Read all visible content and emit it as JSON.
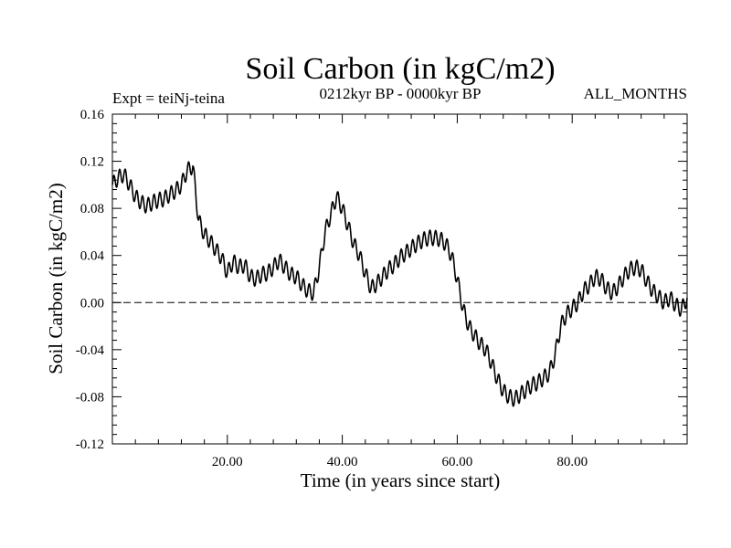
{
  "chart_data": {
    "type": "line",
    "title": "Soil Carbon (in kgC/m2)",
    "subtitle_left": "Expt = teiNj-teina",
    "subtitle_center": "0212kyr BP - 0000kyr BP",
    "subtitle_right": "ALL_MONTHS",
    "xlabel": "Time (in years since start)",
    "ylabel": "Soil Carbon (in kgC/m2)",
    "xlim": [
      0,
      100
    ],
    "ylim": [
      -0.12,
      0.16
    ],
    "xticks": [
      20,
      40,
      60,
      80
    ],
    "xtick_labels": [
      "20.00",
      "40.00",
      "60.00",
      "80.00"
    ],
    "yticks": [
      -0.12,
      -0.08,
      -0.04,
      0.0,
      0.04,
      0.08,
      0.12,
      0.16
    ],
    "ytick_labels": [
      "-0.12",
      "-0.08",
      "-0.04",
      "0.00",
      "0.04",
      "0.08",
      "0.12",
      "0.16"
    ],
    "reference_line": {
      "y": 0.0,
      "style": "dashed"
    },
    "seasonal_cycle": {
      "amplitude": 0.0065,
      "period_years": 1
    },
    "series": [
      {
        "name": "Soil Carbon",
        "x": [
          0,
          1,
          2,
          3,
          4,
          5,
          6,
          7,
          8,
          9,
          10,
          11,
          12,
          13,
          14,
          15,
          16,
          17,
          18,
          19,
          20,
          21,
          22,
          23,
          24,
          25,
          26,
          27,
          28,
          29,
          30,
          31,
          32,
          33,
          34,
          35,
          36,
          37,
          38,
          39,
          40,
          41,
          42,
          43,
          44,
          45,
          46,
          47,
          48,
          49,
          50,
          51,
          52,
          53,
          54,
          55,
          56,
          57,
          58,
          59,
          60,
          61,
          62,
          63,
          64,
          65,
          66,
          67,
          68,
          69,
          70,
          71,
          72,
          73,
          74,
          75,
          76,
          77,
          78,
          79,
          80,
          81,
          82,
          83,
          84,
          85,
          86,
          87,
          88,
          89,
          90,
          91,
          92,
          93,
          94,
          95,
          96,
          97,
          98,
          99,
          100
        ],
        "values": [
          0.1,
          0.106,
          0.109,
          0.1,
          0.09,
          0.085,
          0.082,
          0.085,
          0.087,
          0.088,
          0.092,
          0.095,
          0.1,
          0.112,
          0.116,
          0.07,
          0.058,
          0.052,
          0.045,
          0.038,
          0.025,
          0.035,
          0.03,
          0.032,
          0.022,
          0.02,
          0.024,
          0.025,
          0.03,
          0.036,
          0.03,
          0.024,
          0.022,
          0.015,
          0.01,
          0.008,
          0.03,
          0.06,
          0.075,
          0.09,
          0.08,
          0.065,
          0.05,
          0.04,
          0.025,
          0.012,
          0.016,
          0.022,
          0.028,
          0.032,
          0.038,
          0.042,
          0.046,
          0.05,
          0.053,
          0.055,
          0.055,
          0.054,
          0.05,
          0.04,
          0.02,
          -0.005,
          -0.02,
          -0.028,
          -0.035,
          -0.04,
          -0.052,
          -0.065,
          -0.075,
          -0.08,
          -0.082,
          -0.078,
          -0.074,
          -0.07,
          -0.068,
          -0.064,
          -0.06,
          -0.045,
          -0.02,
          -0.01,
          -0.005,
          0.0,
          0.01,
          0.015,
          0.022,
          0.02,
          0.012,
          0.008,
          0.014,
          0.022,
          0.028,
          0.03,
          0.028,
          0.018,
          0.01,
          0.005,
          0.0,
          0.004,
          -0.002,
          -0.006,
          0.004
        ]
      }
    ]
  }
}
